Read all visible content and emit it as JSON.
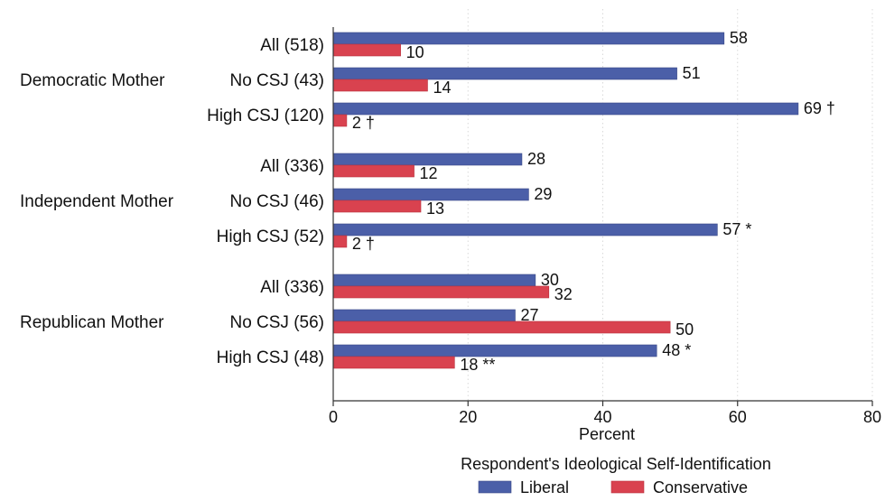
{
  "chart_data": {
    "type": "bar",
    "orientation": "horizontal",
    "groups": [
      {
        "label": "Democratic Mother",
        "rows": [
          {
            "label": "All (518)",
            "liberal": 58,
            "conservative": 10,
            "liberal_text": "58",
            "conservative_text": "10"
          },
          {
            "label": "No CSJ (43)",
            "liberal": 51,
            "conservative": 14,
            "liberal_text": "51",
            "conservative_text": "14"
          },
          {
            "label": "High CSJ (120)",
            "liberal": 69,
            "conservative": 2,
            "liberal_text": "69 †",
            "conservative_text": "2 †"
          }
        ]
      },
      {
        "label": "Independent Mother",
        "rows": [
          {
            "label": "All (336)",
            "liberal": 28,
            "conservative": 12,
            "liberal_text": "28",
            "conservative_text": "12"
          },
          {
            "label": "No CSJ (46)",
            "liberal": 29,
            "conservative": 13,
            "liberal_text": "29",
            "conservative_text": "13"
          },
          {
            "label": "High CSJ (52)",
            "liberal": 57,
            "conservative": 2,
            "liberal_text": "57 *",
            "conservative_text": "2 †"
          }
        ]
      },
      {
        "label": "Republican Mother",
        "rows": [
          {
            "label": "All (336)",
            "liberal": 30,
            "conservative": 32,
            "liberal_text": "30",
            "conservative_text": "32"
          },
          {
            "label": "No CSJ (56)",
            "liberal": 27,
            "conservative": 50,
            "liberal_text": "27",
            "conservative_text": "50"
          },
          {
            "label": "High CSJ (48)",
            "liberal": 48,
            "conservative": 18,
            "liberal_text": "48 *",
            "conservative_text": "18 **"
          }
        ]
      }
    ],
    "series": [
      {
        "name": "Liberal",
        "key": "liberal",
        "color": "#4b5fa8"
      },
      {
        "name": "Conservative",
        "key": "conservative",
        "color": "#d9424f"
      }
    ],
    "xlabel": "Percent",
    "xlim": [
      0,
      80
    ],
    "xticks": [
      "0",
      "20",
      "40",
      "60",
      "80"
    ],
    "grid": "vertical-dotted",
    "legend": {
      "title": "Respondent's Ideological Self-Identification",
      "placement": "bottom"
    }
  }
}
